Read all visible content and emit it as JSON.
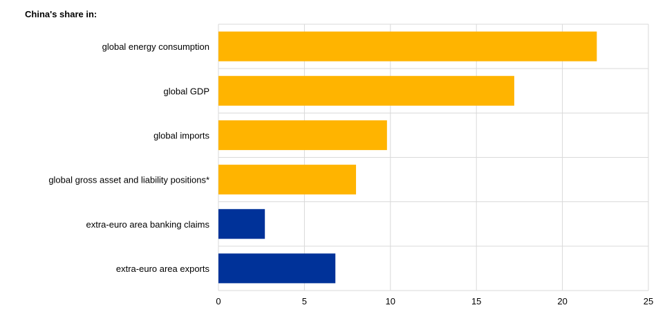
{
  "chart_data": {
    "type": "bar",
    "orientation": "horizontal",
    "title": "China's share in:",
    "xlabel": "",
    "ylabel": "",
    "categories": [
      "global energy consumption",
      "global GDP",
      "global imports",
      "global gross asset and liability positions*",
      "extra-euro area banking claims",
      "extra-euro area exports"
    ],
    "values": [
      22.0,
      17.2,
      9.8,
      8.0,
      2.7,
      6.8
    ],
    "bar_colors": [
      "#FFB400",
      "#FFB400",
      "#FFB400",
      "#FFB400",
      "#003299",
      "#003299"
    ],
    "xlim": [
      0,
      25
    ],
    "xticks": [
      "0",
      "5",
      "10",
      "15",
      "20",
      "25"
    ],
    "grid": true
  }
}
